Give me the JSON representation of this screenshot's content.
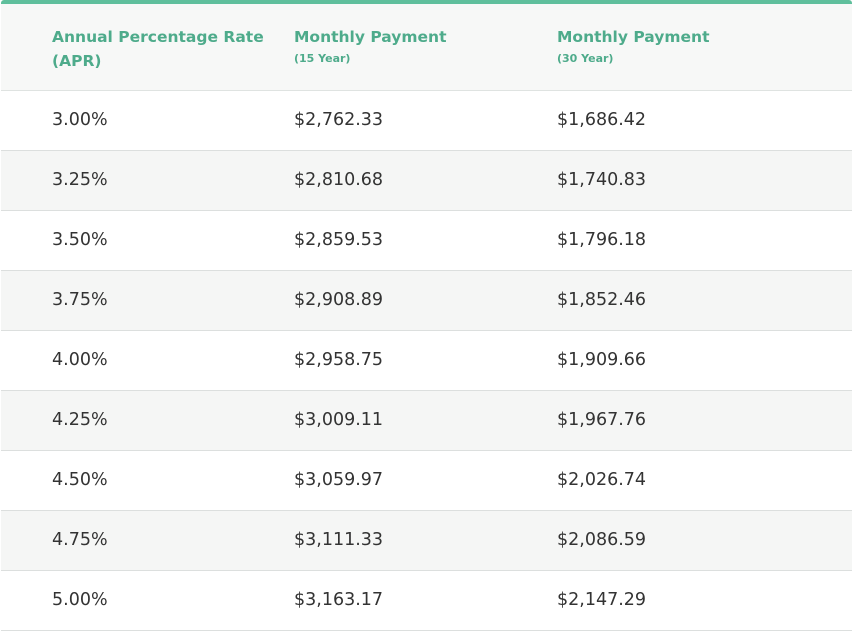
{
  "table": {
    "headers": [
      {
        "main": "Annual Percentage Rate",
        "main2": "(APR)",
        "sub": ""
      },
      {
        "main": "Monthly Payment",
        "main2": "",
        "sub": "(15 Year)"
      },
      {
        "main": "Monthly Payment",
        "main2": "",
        "sub": "(30 Year)"
      }
    ],
    "rows": [
      [
        "3.00%",
        "$2,762.33",
        "$1,686.42"
      ],
      [
        "3.25%",
        "$2,810.68",
        "$1,740.83"
      ],
      [
        "3.50%",
        "$2,859.53",
        "$1,796.18"
      ],
      [
        "3.75%",
        "$2,908.89",
        "$1,852.46"
      ],
      [
        "4.00%",
        "$2,958.75",
        "$1,909.66"
      ],
      [
        "4.25%",
        "$3,009.11",
        "$1,967.76"
      ],
      [
        "4.50%",
        "$3,059.97",
        "$2,026.74"
      ],
      [
        "4.75%",
        "$3,111.33",
        "$2,086.59"
      ],
      [
        "5.00%",
        "$3,163.17",
        "$2,147.29"
      ]
    ],
    "colors": {
      "accent": "#5fbf9c",
      "header_text": "#4eab8b",
      "body_text": "#333333",
      "stripe": "#f5f6f5"
    }
  }
}
